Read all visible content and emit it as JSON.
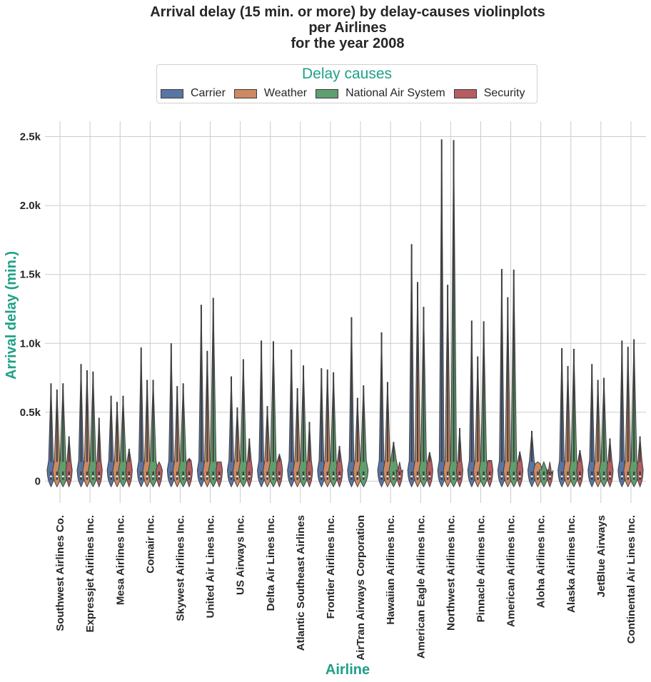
{
  "title_lines": [
    "Arrival delay (15 min. or more) by delay-causes violinplots",
    "per Airlines",
    "for the year 2008"
  ],
  "legend": {
    "title": "Delay causes",
    "items": [
      {
        "label": "Carrier",
        "color": "#5975a4"
      },
      {
        "label": "Weather",
        "color": "#cc8963"
      },
      {
        "label": "National Air System",
        "color": "#5f9e6e"
      },
      {
        "label": "Security",
        "color": "#b55d60"
      }
    ]
  },
  "chart_data": {
    "type": "violin",
    "xlabel": "Airline",
    "ylabel": "Arrival delay (min.)",
    "axis_color": "#1fa187",
    "ylim": [
      -200,
      2600
    ],
    "yticks": [
      0,
      500,
      1000,
      1500,
      2000,
      2500
    ],
    "ytick_labels": [
      "0",
      "0.5k",
      "1.0k",
      "1.5k",
      "2.0k",
      "2.5k"
    ],
    "grid": true,
    "legend_position": "top-center",
    "series_names": [
      "Carrier",
      "Weather",
      "National Air System",
      "Security"
    ],
    "series_colors": [
      "#5975a4",
      "#cc8963",
      "#5f9e6e",
      "#b55d60"
    ],
    "categories": [
      {
        "name": "Southwest Airlines Co.",
        "max": [
          710,
          665,
          710,
          325
        ]
      },
      {
        "name": "Expressjet Airlines Inc.",
        "max": [
          850,
          805,
          795,
          460
        ]
      },
      {
        "name": "Mesa Airlines Inc.",
        "max": [
          620,
          575,
          620,
          235
        ]
      },
      {
        "name": "Comair Inc.",
        "max": [
          970,
          735,
          735,
          110
        ]
      },
      {
        "name": "Skywest Airlines Inc.",
        "max": [
          1000,
          690,
          710,
          165
        ]
      },
      {
        "name": "United Air Lines Inc.",
        "max": [
          1280,
          945,
          1330,
          140
        ]
      },
      {
        "name": "US Airways Inc.",
        "max": [
          760,
          535,
          885,
          310
        ]
      },
      {
        "name": "Delta Air Lines Inc.",
        "max": [
          1020,
          545,
          1015,
          195
        ]
      },
      {
        "name": "Atlantic Southeast Airlines",
        "max": [
          955,
          675,
          840,
          430
        ]
      },
      {
        "name": "Frontier Airlines Inc.",
        "max": [
          820,
          810,
          790,
          255
        ]
      },
      {
        "name": "AirTran Airways Corporation",
        "max": [
          1190,
          605,
          695,
          0
        ]
      },
      {
        "name": "Hawaiian Airlines Inc.",
        "max": [
          1080,
          720,
          285,
          70
        ]
      },
      {
        "name": "American Eagle Airlines Inc.",
        "max": [
          1720,
          1445,
          1265,
          210
        ]
      },
      {
        "name": "Northwest Airlines Inc.",
        "max": [
          2480,
          1425,
          2475,
          385
        ]
      },
      {
        "name": "Pinnacle Airlines Inc.",
        "max": [
          1165,
          905,
          1160,
          150
        ]
      },
      {
        "name": "American Airlines Inc.",
        "max": [
          1540,
          1335,
          1535,
          215
        ]
      },
      {
        "name": "Aloha Airlines Inc.",
        "max": [
          365,
          125,
          85,
          50
        ]
      },
      {
        "name": "Alaska Airlines Inc.",
        "max": [
          965,
          835,
          960,
          225
        ]
      },
      {
        "name": "JetBlue Airways",
        "max": [
          850,
          735,
          750,
          310
        ]
      },
      {
        "name": "Continental Air Lines Inc.",
        "max": [
          1020,
          975,
          1030,
          325
        ]
      }
    ]
  }
}
